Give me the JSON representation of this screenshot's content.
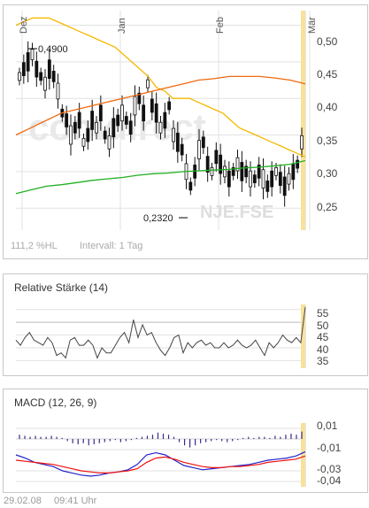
{
  "main": {
    "date_labels": [
      "Dez",
      "Jan",
      "Feb",
      "Mär"
    ],
    "y_ticks": [
      "0,50",
      "0,45",
      "0,40",
      "0,35",
      "0,30",
      "0,25"
    ],
    "high_label": "0,4900",
    "low_label": "0,2320",
    "percent_label": "111,2 %HL",
    "interval_label": "Intervall: 1 Tag",
    "watermark_brand": "comdirect",
    "watermark_symbol": "NJE.FSE"
  },
  "rsi": {
    "title": "Relative Stärke (14)",
    "y_ticks": [
      "55",
      "50",
      "45",
      "40",
      "35"
    ]
  },
  "macd": {
    "title": "MACD (12, 26, 9)",
    "y_ticks": [
      "0,01",
      "-0,01",
      "-0,03",
      "-0,04"
    ]
  },
  "footer": {
    "date": "29.02.08",
    "time": "09:41 Uhr"
  },
  "colors": {
    "ma_yellow": "#f5b800",
    "ma_orange": "#ee6a10",
    "ma_green": "#22b022",
    "highlight": "#f8e19a",
    "macd_blue": "#2222cc",
    "macd_red": "#ee1111",
    "histogram": "#3a2a8a"
  },
  "chart_data": [
    {
      "type": "line",
      "description_of_series": "daily price candles with three moving averages",
      "x_labels": [
        "Dez",
        "Jan",
        "Feb",
        "Mär"
      ],
      "ylim": [
        0.22,
        0.52
      ],
      "high": 0.49,
      "low": 0.232,
      "series": [
        {
          "values": [
            0.43,
            0.44,
            0.45,
            0.46,
            0.44,
            0.43,
            0.42,
            0.44,
            0.43,
            0.41,
            0.38,
            0.37,
            0.35,
            0.36,
            0.37,
            0.34,
            0.35,
            0.37,
            0.36,
            0.38,
            0.35,
            0.34,
            0.36,
            0.37,
            0.38,
            0.37,
            0.36,
            0.39,
            0.4,
            0.38,
            0.42,
            0.39,
            0.38,
            0.36,
            0.37,
            0.39,
            0.35,
            0.34,
            0.33,
            0.3,
            0.28,
            0.3,
            0.33,
            0.34,
            0.31,
            0.3,
            0.32,
            0.31,
            0.3,
            0.29,
            0.3,
            0.31,
            0.3,
            0.3,
            0.29,
            0.29,
            0.3,
            0.29,
            0.28,
            0.29,
            0.3,
            0.29,
            0.28,
            0.29,
            0.3,
            0.31,
            0.34
          ]
        },
        {
          "values": [
            0.5,
            0.505,
            0.51,
            0.51,
            0.51,
            0.505,
            0.5,
            0.495,
            0.49,
            0.485,
            0.48,
            0.475,
            0.47,
            0.46,
            0.45,
            0.44,
            0.43,
            0.415,
            0.41,
            0.4,
            0.4,
            0.4,
            0.395,
            0.39,
            0.385,
            0.38,
            0.37,
            0.36,
            0.355,
            0.35,
            0.345,
            0.34,
            0.335,
            0.33,
            0.325,
            0.32
          ]
        },
        {
          "values": [
            0.35,
            0.36,
            0.37,
            0.38,
            0.385,
            0.39,
            0.395,
            0.4,
            0.405,
            0.41,
            0.415,
            0.42,
            0.425,
            0.427,
            0.43,
            0.43,
            0.43,
            0.428,
            0.425,
            0.42
          ]
        },
        {
          "values": [
            0.27,
            0.275,
            0.28,
            0.282,
            0.285,
            0.288,
            0.29,
            0.292,
            0.295,
            0.297,
            0.298,
            0.3,
            0.301,
            0.302,
            0.303,
            0.305,
            0.306,
            0.308,
            0.31,
            0.315
          ]
        }
      ]
    },
    {
      "type": "line",
      "title": "Relative Stärke (14)",
      "ylim": [
        32,
        57
      ],
      "series": [
        {
          "values": [
            43,
            41,
            44,
            46,
            43,
            42,
            41,
            44,
            42,
            37,
            38,
            36,
            43,
            44,
            41,
            41,
            43,
            41,
            36,
            40,
            38,
            38,
            41,
            44,
            46,
            42,
            51,
            44,
            49,
            45,
            46,
            42,
            39,
            37,
            40,
            44,
            45,
            38,
            42,
            40,
            42,
            43,
            41,
            42,
            40,
            40,
            42,
            40,
            41,
            43,
            41,
            40,
            41,
            43,
            40,
            37,
            42,
            40,
            42,
            45,
            43,
            42,
            44,
            42,
            56
          ]
        }
      ]
    },
    {
      "type": "line",
      "title": "MACD (12, 26, 9)",
      "ylim": [
        -0.045,
        0.015
      ],
      "histogram": [
        0.004,
        0.003,
        0.002,
        0.003,
        0.002,
        0.002,
        0.003,
        0.002,
        0.001,
        -0.002,
        -0.004,
        -0.005,
        -0.004,
        -0.006,
        -0.005,
        -0.004,
        -0.003,
        -0.002,
        -0.001,
        -0.003,
        -0.002,
        -0.001,
        0.001,
        0.002,
        0.003,
        0.004,
        0.006,
        0.005,
        0.004,
        0.002,
        -0.003,
        -0.006,
        -0.008,
        -0.006,
        -0.004,
        -0.003,
        -0.002,
        -0.001,
        -0.002,
        -0.003,
        -0.002,
        -0.001,
        0.001,
        0.002,
        0.001,
        0.002,
        0.002,
        0.001,
        0.003,
        0.002,
        0.004,
        0.005,
        0.004,
        0.007
      ],
      "series": [
        {
          "values": [
            -0.015,
            -0.018,
            -0.022,
            -0.024,
            -0.026,
            -0.03,
            -0.032,
            -0.034,
            -0.035,
            -0.034,
            -0.032,
            -0.031,
            -0.029,
            -0.024,
            -0.015,
            -0.013,
            -0.015,
            -0.02,
            -0.025,
            -0.027,
            -0.029,
            -0.028,
            -0.027,
            -0.026,
            -0.025,
            -0.024,
            -0.022,
            -0.02,
            -0.019,
            -0.018,
            -0.016,
            -0.012
          ]
        },
        {
          "values": [
            -0.02,
            -0.021,
            -0.022,
            -0.023,
            -0.024,
            -0.026,
            -0.028,
            -0.03,
            -0.031,
            -0.032,
            -0.032,
            -0.031,
            -0.03,
            -0.028,
            -0.022,
            -0.018,
            -0.017,
            -0.019,
            -0.022,
            -0.024,
            -0.026,
            -0.027,
            -0.027,
            -0.026,
            -0.026,
            -0.025,
            -0.024,
            -0.022,
            -0.021,
            -0.02,
            -0.019,
            -0.016
          ]
        }
      ]
    }
  ]
}
